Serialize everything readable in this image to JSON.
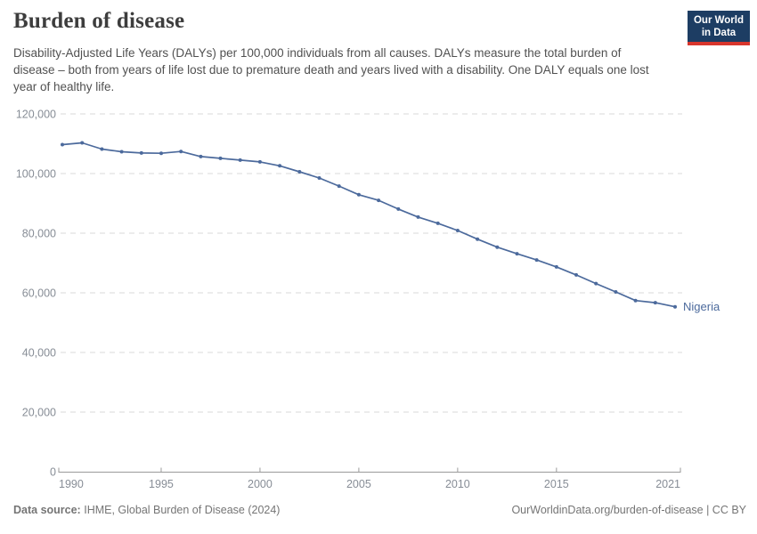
{
  "header": {
    "title": "Burden of disease",
    "subtitle": "Disability-Adjusted Life Years (DALYs) per 100,000 individuals from all causes. DALYs measure the total burden of disease – both from years of life lost due to premature death and years lived with a disability. One DALY equals one lost year of healthy life.",
    "logo": {
      "line1": "Our World",
      "line2": "in Data",
      "bg_color": "#1d3d63",
      "accent_color": "#d8352c"
    }
  },
  "chart_data": {
    "type": "line",
    "title": "Burden of disease",
    "xlabel": "",
    "ylabel": "DALYs per 100,000 individuals",
    "xlim": [
      1990,
      2021
    ],
    "ylim": [
      0,
      120000
    ],
    "x_ticks": [
      1990,
      1995,
      2000,
      2005,
      2010,
      2015,
      2021
    ],
    "y_ticks": [
      0,
      20000,
      40000,
      60000,
      80000,
      100000,
      120000
    ],
    "grid": "horizontal-dashed",
    "legend": "end-of-line-label",
    "grid_color": "#dadada",
    "axis_color": "#9a9a9a",
    "tick_label_color": "#878d96",
    "series": [
      {
        "name": "Nigeria",
        "color": "#4c6a9c",
        "x": [
          1990,
          1991,
          1992,
          1993,
          1994,
          1995,
          1996,
          1997,
          1998,
          1999,
          2000,
          2001,
          2002,
          2003,
          2004,
          2005,
          2006,
          2007,
          2008,
          2009,
          2010,
          2011,
          2012,
          2013,
          2014,
          2015,
          2016,
          2017,
          2018,
          2019,
          2020,
          2021
        ],
        "values": [
          109700,
          110300,
          108200,
          107300,
          106900,
          106800,
          107400,
          105700,
          105100,
          104500,
          103900,
          102600,
          100600,
          98500,
          95800,
          92900,
          91000,
          88100,
          85400,
          83300,
          80900,
          78000,
          75300,
          73100,
          71000,
          68700,
          66000,
          63100,
          60300,
          57400,
          56700,
          55300
        ]
      }
    ]
  },
  "footer": {
    "source_label": "Data source:",
    "source_text": "IHME, Global Burden of Disease (2024)",
    "link_text": "OurWorldinData.org/burden-of-disease | CC BY"
  }
}
